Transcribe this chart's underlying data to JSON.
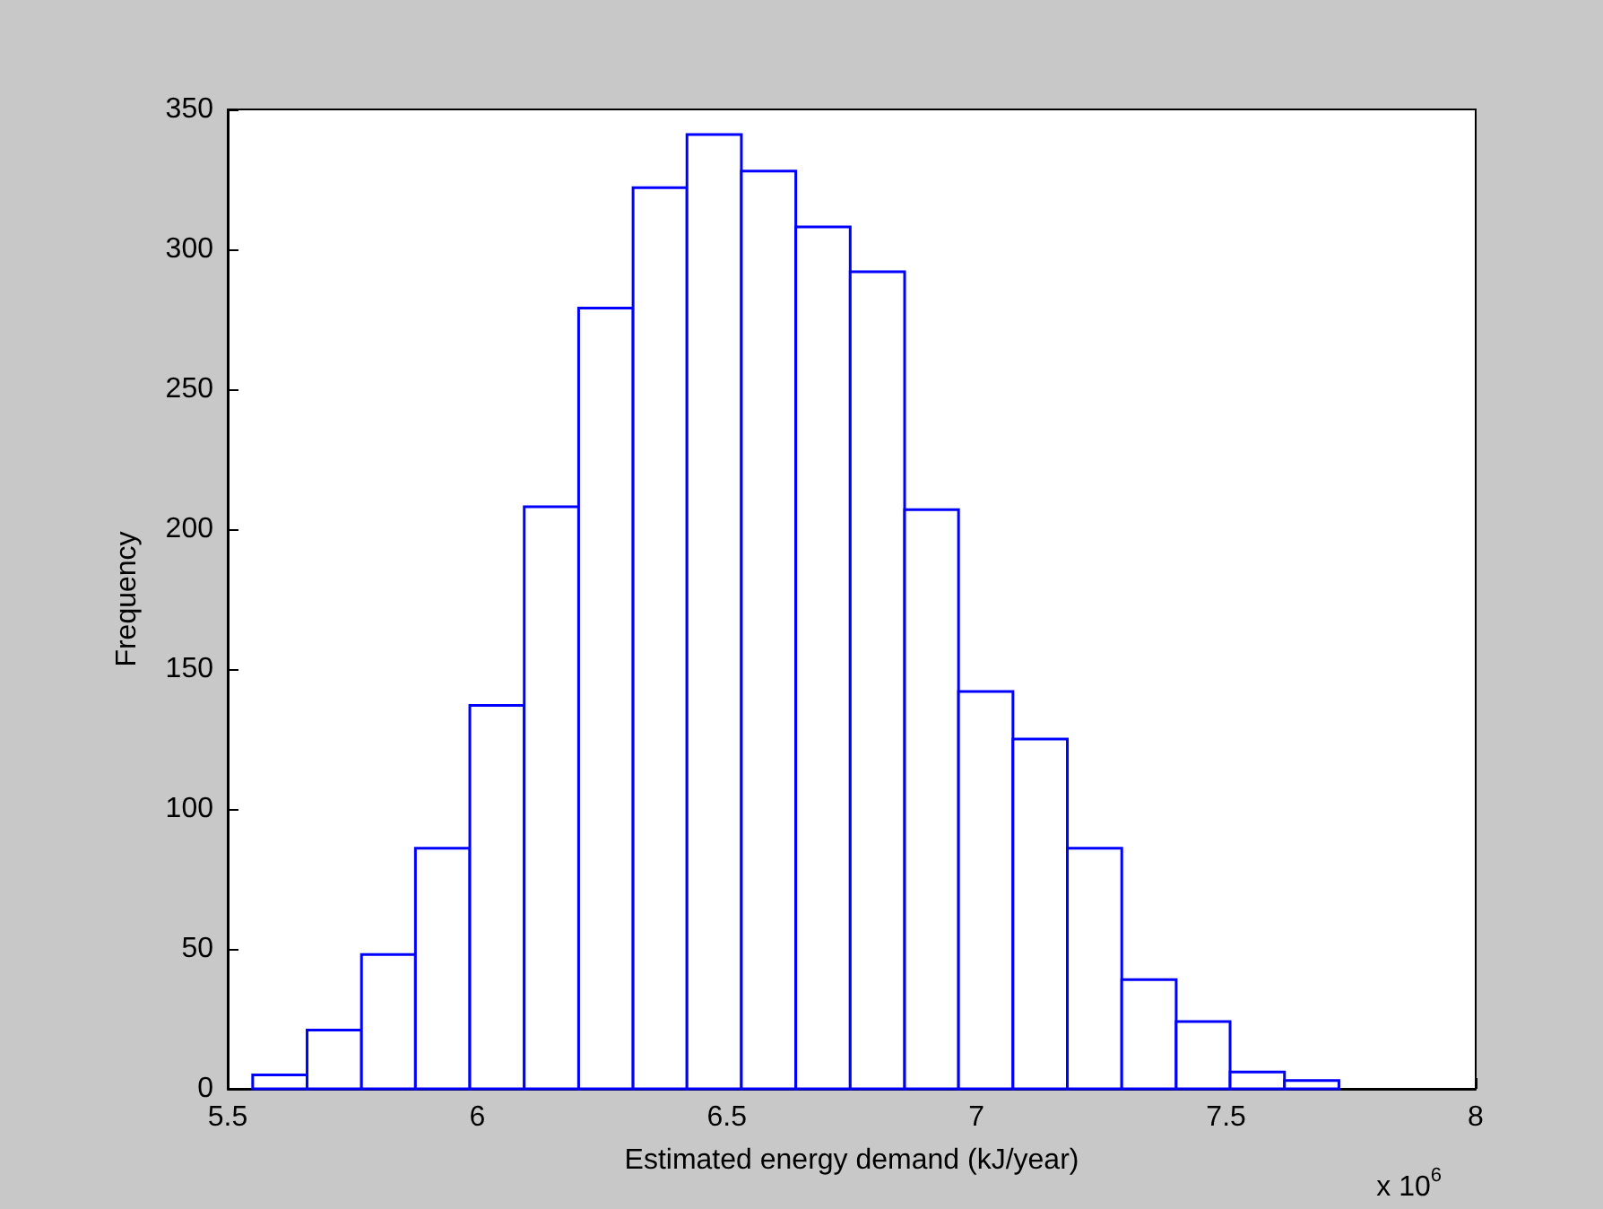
{
  "chart_data": {
    "type": "histogram",
    "xlabel": "Estimated energy demand (kJ/year)",
    "ylabel": "Frequency",
    "annotations": [
      "x 10$^{6}$"
    ],
    "bins": [
      5.55,
      5.659,
      5.768,
      5.876,
      5.985,
      6.094,
      6.203,
      6.312,
      6.42,
      6.529,
      6.638,
      6.747,
      6.856,
      6.964,
      7.073,
      7.182,
      7.291,
      7.4,
      7.508,
      7.617,
      7.726
    ],
    "values": [
      5,
      21,
      48,
      86,
      137,
      208,
      279,
      322,
      341,
      328,
      308,
      292,
      207,
      142,
      125,
      86,
      39,
      24,
      6,
      3
    ],
    "color": "#0000ff",
    "xlim": [
      5.5,
      8
    ],
    "xticks": [
      5.5,
      6,
      6.5,
      7,
      7.5,
      8
    ],
    "ylim": [
      0,
      350
    ],
    "yticks": [
      0,
      50,
      100,
      150,
      200,
      250,
      300,
      350
    ]
  }
}
